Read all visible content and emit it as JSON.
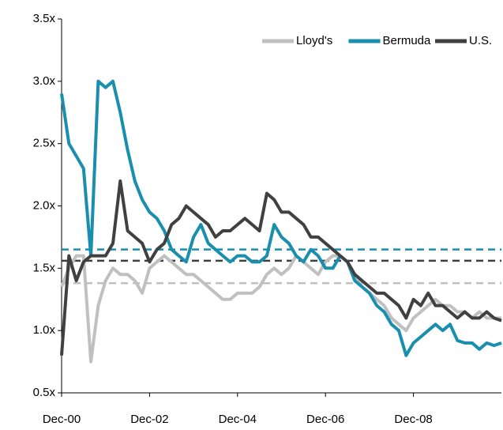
{
  "chart_data": {
    "type": "line",
    "x": [
      "Dec-00",
      "Feb-01",
      "Apr-01",
      "Jun-01",
      "Aug-01",
      "Oct-01",
      "Dec-01",
      "Feb-02",
      "Apr-02",
      "Jun-02",
      "Aug-02",
      "Oct-02",
      "Dec-02",
      "Feb-03",
      "Apr-03",
      "Jun-03",
      "Aug-03",
      "Oct-03",
      "Dec-03",
      "Feb-04",
      "Apr-04",
      "Jun-04",
      "Aug-04",
      "Oct-04",
      "Dec-04",
      "Feb-05",
      "Apr-05",
      "Jun-05",
      "Aug-05",
      "Oct-05",
      "Dec-05",
      "Feb-06",
      "Apr-06",
      "Jun-06",
      "Aug-06",
      "Oct-06",
      "Dec-06",
      "Feb-07",
      "Apr-07",
      "Jun-07",
      "Aug-07",
      "Oct-07",
      "Dec-07",
      "Feb-08",
      "Apr-08",
      "Jun-08",
      "Aug-08",
      "Oct-08",
      "Dec-08",
      "Feb-09",
      "Apr-09",
      "Jun-09",
      "Aug-09",
      "Oct-09",
      "Dec-09",
      "Feb-10",
      "Apr-10",
      "Jun-10",
      "Aug-10",
      "Oct-10",
      "Dec-10"
    ],
    "xticks": [
      "Dec-00",
      "Dec-02",
      "Dec-04",
      "Dec-06",
      "Dec-08"
    ],
    "ylim": [
      0.5,
      3.5
    ],
    "yticks": [
      {
        "value": 0.5,
        "label": "0.5x"
      },
      {
        "value": 1.0,
        "label": "1.0x"
      },
      {
        "value": 1.5,
        "label": "1.5x"
      },
      {
        "value": 2.0,
        "label": "2.0x"
      },
      {
        "value": 2.5,
        "label": "2.5x"
      },
      {
        "value": 3.0,
        "label": "3.0x"
      },
      {
        "value": 3.5,
        "label": "3.5x"
      }
    ],
    "grid": false,
    "legend": "top-right",
    "series": [
      {
        "name": "Lloyd's",
        "color": "#c0c0c0",
        "average": 1.38,
        "values": [
          1.35,
          1.5,
          1.6,
          1.6,
          0.75,
          1.2,
          1.4,
          1.5,
          1.45,
          1.45,
          1.4,
          1.3,
          1.5,
          1.55,
          1.6,
          1.55,
          1.5,
          1.45,
          1.45,
          1.4,
          1.35,
          1.3,
          1.25,
          1.25,
          1.3,
          1.3,
          1.3,
          1.35,
          1.45,
          1.5,
          1.45,
          1.5,
          1.6,
          1.55,
          1.5,
          1.45,
          1.55,
          1.6,
          1.6,
          1.55,
          1.45,
          1.35,
          1.3,
          1.25,
          1.2,
          1.1,
          1.05,
          1.0,
          1.1,
          1.15,
          1.2,
          1.25,
          1.2,
          1.2,
          1.15,
          1.15,
          1.1,
          1.15,
          1.1,
          1.1,
          1.1
        ]
      },
      {
        "name": "Bermuda",
        "color": "#1a8fad",
        "average": 1.65,
        "values": [
          2.9,
          2.5,
          2.4,
          2.3,
          1.6,
          3.0,
          2.95,
          3.0,
          2.75,
          2.45,
          2.2,
          2.05,
          1.95,
          1.9,
          1.8,
          1.65,
          1.6,
          1.55,
          1.75,
          1.85,
          1.7,
          1.65,
          1.6,
          1.55,
          1.6,
          1.6,
          1.55,
          1.55,
          1.6,
          1.85,
          1.75,
          1.7,
          1.6,
          1.55,
          1.65,
          1.6,
          1.5,
          1.5,
          1.6,
          1.55,
          1.4,
          1.35,
          1.3,
          1.2,
          1.15,
          1.05,
          1.0,
          0.8,
          0.9,
          0.95,
          1.0,
          1.05,
          1.0,
          1.05,
          0.92,
          0.9,
          0.9,
          0.85,
          0.9,
          0.88,
          0.9
        ]
      },
      {
        "name": "U.S.",
        "color": "#404040",
        "average": 1.56,
        "values": [
          0.8,
          1.6,
          1.4,
          1.55,
          1.6,
          1.6,
          1.6,
          1.7,
          2.2,
          1.8,
          1.75,
          1.7,
          1.55,
          1.65,
          1.7,
          1.85,
          1.9,
          2.0,
          1.95,
          1.9,
          1.85,
          1.75,
          1.8,
          1.8,
          1.85,
          1.9,
          1.85,
          1.8,
          2.1,
          2.05,
          1.95,
          1.95,
          1.9,
          1.85,
          1.75,
          1.75,
          1.7,
          1.65,
          1.6,
          1.55,
          1.45,
          1.4,
          1.35,
          1.3,
          1.3,
          1.25,
          1.2,
          1.1,
          1.25,
          1.2,
          1.3,
          1.2,
          1.2,
          1.15,
          1.1,
          1.15,
          1.1,
          1.1,
          1.15,
          1.1,
          1.08
        ]
      }
    ]
  }
}
